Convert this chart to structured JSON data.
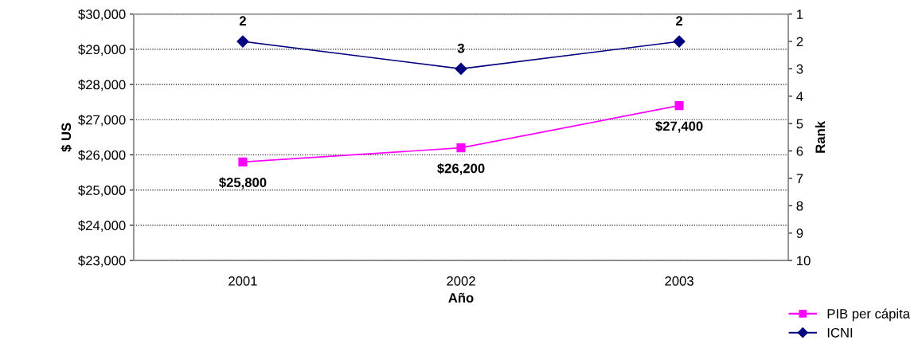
{
  "chart_data": {
    "type": "line",
    "xlabel": "Año",
    "ylabel": "$ US",
    "y2label": "Rank",
    "categories": [
      "2001",
      "2002",
      "2003"
    ],
    "series": [
      {
        "name": "PIB per cápita",
        "color": "#ff00ff",
        "marker": "square",
        "values": [
          25800,
          26200,
          27400
        ],
        "value_labels": [
          "$25,800",
          "$26,200",
          "$27,400"
        ]
      },
      {
        "name": "ICNI",
        "color": "#000080",
        "marker": "diamond",
        "axis": "y2",
        "values": [
          2,
          3,
          2
        ],
        "value_labels": [
          "2",
          "3",
          "2"
        ]
      }
    ],
    "ylim": [
      23000,
      30000
    ],
    "yticks": [
      {
        "value": 23000,
        "label": "$23,000"
      },
      {
        "value": 24000,
        "label": "$24,000"
      },
      {
        "value": 25000,
        "label": "$25,000"
      },
      {
        "value": 26000,
        "label": "$26,000"
      },
      {
        "value": 27000,
        "label": "$27,000"
      },
      {
        "value": 28000,
        "label": "$28,000"
      },
      {
        "value": 29000,
        "label": "$29,000"
      },
      {
        "value": 30000,
        "label": "$30,000"
      }
    ],
    "y2lim": [
      10,
      1
    ],
    "y2ticks": [
      1,
      2,
      3,
      4,
      5,
      6,
      7,
      8,
      9,
      10
    ],
    "grid": "y",
    "legend": "bottom right"
  }
}
